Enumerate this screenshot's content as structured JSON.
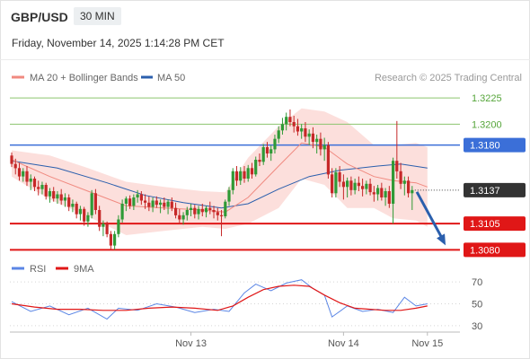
{
  "header": {
    "symbol": "GBP/USD",
    "timeframe": "30 MIN",
    "timestamp": "Friday, November 14, 2025 1:14:28 PM CET"
  },
  "legend": {
    "ma20": {
      "label": "MA 20 + Bollinger Bands",
      "color": "#f08a80"
    },
    "ma50": {
      "label": "MA 50",
      "color": "#2b5fad"
    },
    "credit": "Research © 2025 Trading Central"
  },
  "colors": {
    "up": "#2f9a36",
    "down": "#c62828",
    "band": "#fcd9d6",
    "resistance": "#8cc56e",
    "pivot": "#3b6fd8",
    "support": "#e01717",
    "rsi": "#5b86e5",
    "rsi_ma": "#e01717"
  },
  "chart_data": [
    {
      "type": "candlestick",
      "title": "GBP/USD 30 MIN",
      "ylim": [
        1.307,
        1.325
      ],
      "xlim": [
        0,
        118
      ],
      "x_tick_labels": [
        {
          "label": "Nov 13",
          "x": 47
        },
        {
          "label": "Nov 14",
          "x": 87
        },
        {
          "label": "Nov 15",
          "x": 109
        }
      ],
      "levels": [
        {
          "label": "1.3225",
          "value": 1.3225,
          "kind": "resistance"
        },
        {
          "label": "1.3200",
          "value": 1.32,
          "kind": "resistance"
        },
        {
          "label": "1.3180",
          "value": 1.318,
          "kind": "pivot"
        },
        {
          "label": "1.3137",
          "value": 1.3137,
          "kind": "last"
        },
        {
          "label": "1.3105",
          "value": 1.3105,
          "kind": "support"
        },
        {
          "label": "1.3080",
          "value": 1.308,
          "kind": "support"
        }
      ],
      "projection": {
        "from_value": 1.3137,
        "to_value": 1.308
      },
      "candles": [
        [
          1.317,
          1.3173,
          1.3159,
          1.3162
        ],
        [
          1.3162,
          1.3167,
          1.3152,
          1.3158
        ],
        [
          1.3158,
          1.3163,
          1.3146,
          1.315
        ],
        [
          1.315,
          1.3158,
          1.3145,
          1.3155
        ],
        [
          1.3155,
          1.316,
          1.3141,
          1.3145
        ],
        [
          1.3145,
          1.3152,
          1.3137,
          1.3148
        ],
        [
          1.3148,
          1.315,
          1.3136,
          1.314
        ],
        [
          1.314,
          1.3146,
          1.3132,
          1.3138
        ],
        [
          1.3138,
          1.3145,
          1.3133,
          1.3142
        ],
        [
          1.3142,
          1.3144,
          1.3128,
          1.3131
        ],
        [
          1.3131,
          1.3139,
          1.3125,
          1.3136
        ],
        [
          1.3136,
          1.314,
          1.3126,
          1.3129
        ],
        [
          1.3129,
          1.3136,
          1.3124,
          1.3133
        ],
        [
          1.3133,
          1.3138,
          1.3123,
          1.3127
        ],
        [
          1.3127,
          1.3134,
          1.3121,
          1.313
        ],
        [
          1.313,
          1.3133,
          1.3117,
          1.3121
        ],
        [
          1.3121,
          1.3128,
          1.3116,
          1.3124
        ],
        [
          1.3124,
          1.3126,
          1.311,
          1.3114
        ],
        [
          1.3114,
          1.3122,
          1.3108,
          1.3119
        ],
        [
          1.3119,
          1.3121,
          1.3103,
          1.3107
        ],
        [
          1.3107,
          1.3116,
          1.3102,
          1.3113
        ],
        [
          1.3113,
          1.3137,
          1.311,
          1.3134
        ],
        [
          1.3134,
          1.3138,
          1.3114,
          1.3118
        ],
        [
          1.3118,
          1.3122,
          1.3098,
          1.3102
        ],
        [
          1.3102,
          1.3108,
          1.3093,
          1.3105
        ],
        [
          1.3105,
          1.3107,
          1.3092,
          1.3095
        ],
        [
          1.3095,
          1.3098,
          1.308,
          1.3084
        ],
        [
          1.3084,
          1.3098,
          1.308,
          1.3095
        ],
        [
          1.3095,
          1.3113,
          1.3092,
          1.3109
        ],
        [
          1.3109,
          1.3128,
          1.3106,
          1.3124
        ],
        [
          1.3124,
          1.3131,
          1.3117,
          1.3129
        ],
        [
          1.3129,
          1.3132,
          1.3119,
          1.3122
        ],
        [
          1.3122,
          1.3133,
          1.3118,
          1.313
        ],
        [
          1.313,
          1.3137,
          1.3125,
          1.3133
        ],
        [
          1.3133,
          1.3136,
          1.3123,
          1.3127
        ],
        [
          1.3127,
          1.3133,
          1.3119,
          1.3125
        ],
        [
          1.3125,
          1.3131,
          1.3117,
          1.3121
        ],
        [
          1.3121,
          1.313,
          1.3116,
          1.3127
        ],
        [
          1.3127,
          1.3131,
          1.312,
          1.3123
        ],
        [
          1.3123,
          1.3128,
          1.3115,
          1.3125
        ],
        [
          1.3125,
          1.313,
          1.3118,
          1.3121
        ],
        [
          1.3121,
          1.3128,
          1.3114,
          1.3126
        ],
        [
          1.3126,
          1.313,
          1.3117,
          1.312
        ],
        [
          1.312,
          1.3125,
          1.311,
          1.3113
        ],
        [
          1.3113,
          1.3119,
          1.3105,
          1.3109
        ],
        [
          1.3109,
          1.3116,
          1.3104,
          1.3113
        ],
        [
          1.3113,
          1.3121,
          1.3108,
          1.3118
        ],
        [
          1.3118,
          1.3124,
          1.3112,
          1.312
        ],
        [
          1.312,
          1.3123,
          1.311,
          1.3114
        ],
        [
          1.3114,
          1.3122,
          1.3109,
          1.3119
        ],
        [
          1.3119,
          1.3124,
          1.3112,
          1.3116
        ],
        [
          1.3116,
          1.3122,
          1.3111,
          1.312
        ],
        [
          1.312,
          1.3126,
          1.3114,
          1.3118
        ],
        [
          1.3118,
          1.3122,
          1.311,
          1.3116
        ],
        [
          1.3116,
          1.312,
          1.3108,
          1.3113
        ],
        [
          1.3113,
          1.3118,
          1.3093,
          1.3112
        ],
        [
          1.3112,
          1.3128,
          1.311,
          1.3126
        ],
        [
          1.3126,
          1.314,
          1.3122,
          1.3137
        ],
        [
          1.3137,
          1.3158,
          1.3133,
          1.3155
        ],
        [
          1.3155,
          1.316,
          1.3141,
          1.3146
        ],
        [
          1.3146,
          1.3159,
          1.3142,
          1.3155
        ],
        [
          1.3155,
          1.316,
          1.3144,
          1.3148
        ],
        [
          1.3148,
          1.3161,
          1.3145,
          1.3158
        ],
        [
          1.3158,
          1.3163,
          1.3148,
          1.3152
        ],
        [
          1.3152,
          1.3169,
          1.315,
          1.3166
        ],
        [
          1.3166,
          1.3172,
          1.316,
          1.3164
        ],
        [
          1.3164,
          1.3181,
          1.3161,
          1.3178
        ],
        [
          1.3178,
          1.3183,
          1.3168,
          1.3172
        ],
        [
          1.3172,
          1.318,
          1.3165,
          1.3176
        ],
        [
          1.3176,
          1.319,
          1.3172,
          1.3186
        ],
        [
          1.3186,
          1.3198,
          1.3182,
          1.3194
        ],
        [
          1.3194,
          1.3206,
          1.319,
          1.32
        ],
        [
          1.32,
          1.3211,
          1.3194,
          1.3207
        ],
        [
          1.3207,
          1.3214,
          1.3198,
          1.3202
        ],
        [
          1.3202,
          1.3208,
          1.3192,
          1.3198
        ],
        [
          1.3198,
          1.3205,
          1.3189,
          1.3193
        ],
        [
          1.3193,
          1.32,
          1.3186,
          1.3196
        ],
        [
          1.3196,
          1.3202,
          1.3183,
          1.3188
        ],
        [
          1.3188,
          1.3195,
          1.318,
          1.3191
        ],
        [
          1.3191,
          1.3197,
          1.3177,
          1.3183
        ],
        [
          1.3183,
          1.319,
          1.3172,
          1.3186
        ],
        [
          1.3186,
          1.3192,
          1.317,
          1.3176
        ],
        [
          1.3176,
          1.3187,
          1.3165,
          1.318
        ],
        [
          1.318,
          1.3183,
          1.3148,
          1.3152
        ],
        [
          1.3152,
          1.3158,
          1.313,
          1.3134
        ],
        [
          1.3134,
          1.3158,
          1.313,
          1.3154
        ],
        [
          1.3154,
          1.316,
          1.314,
          1.3145
        ],
        [
          1.3145,
          1.3152,
          1.3128,
          1.314
        ],
        [
          1.314,
          1.3149,
          1.313,
          1.3146
        ],
        [
          1.3146,
          1.315,
          1.3132,
          1.3137
        ],
        [
          1.3137,
          1.3148,
          1.3133,
          1.3144
        ],
        [
          1.3144,
          1.315,
          1.3136,
          1.3141
        ],
        [
          1.3141,
          1.3148,
          1.3131,
          1.3138
        ],
        [
          1.3138,
          1.3146,
          1.3133,
          1.3143
        ],
        [
          1.3143,
          1.3148,
          1.3132,
          1.3135
        ],
        [
          1.3135,
          1.3141,
          1.3126,
          1.3133
        ],
        [
          1.3133,
          1.3142,
          1.3127,
          1.3139
        ],
        [
          1.3139,
          1.3144,
          1.3127,
          1.313
        ],
        [
          1.313,
          1.3139,
          1.3122,
          1.3136
        ],
        [
          1.3136,
          1.3141,
          1.312,
          1.3124
        ],
        [
          1.3124,
          1.3168,
          1.3105,
          1.3165
        ],
        [
          1.3165,
          1.3203,
          1.3148,
          1.3155
        ],
        [
          1.3155,
          1.3163,
          1.3138,
          1.3143
        ],
        [
          1.3143,
          1.315,
          1.3132,
          1.3146
        ],
        [
          1.3146,
          1.315,
          1.313,
          1.3134
        ],
        [
          1.3134,
          1.3141,
          1.3118,
          1.3137
        ]
      ],
      "ma20": [
        [
          0,
          1.3166
        ],
        [
          10,
          1.315
        ],
        [
          20,
          1.3136
        ],
        [
          30,
          1.3122
        ],
        [
          40,
          1.312
        ],
        [
          50,
          1.3118
        ],
        [
          56,
          1.3116
        ],
        [
          62,
          1.313
        ],
        [
          70,
          1.316
        ],
        [
          76,
          1.3182
        ],
        [
          82,
          1.3178
        ],
        [
          88,
          1.3162
        ],
        [
          95,
          1.315
        ],
        [
          100,
          1.3146
        ],
        [
          106,
          1.3144
        ],
        [
          109,
          1.314
        ]
      ],
      "ma50": [
        [
          0,
          1.3165
        ],
        [
          12,
          1.3158
        ],
        [
          25,
          1.3144
        ],
        [
          35,
          1.3132
        ],
        [
          45,
          1.3125
        ],
        [
          55,
          1.312
        ],
        [
          62,
          1.3124
        ],
        [
          70,
          1.3138
        ],
        [
          78,
          1.315
        ],
        [
          86,
          1.3156
        ],
        [
          96,
          1.316
        ],
        [
          102,
          1.3162
        ],
        [
          109,
          1.3158
        ]
      ],
      "bollinger_upper": [
        [
          0,
          1.3175
        ],
        [
          10,
          1.317
        ],
        [
          20,
          1.3158
        ],
        [
          30,
          1.3145
        ],
        [
          40,
          1.314
        ],
        [
          50,
          1.3136
        ],
        [
          56,
          1.3135
        ],
        [
          62,
          1.3168
        ],
        [
          70,
          1.3198
        ],
        [
          76,
          1.3215
        ],
        [
          82,
          1.3212
        ],
        [
          88,
          1.3202
        ],
        [
          95,
          1.318
        ],
        [
          100,
          1.318
        ],
        [
          106,
          1.3182
        ],
        [
          109,
          1.3178
        ]
      ],
      "bollinger_lower": [
        [
          0,
          1.315
        ],
        [
          10,
          1.3128
        ],
        [
          20,
          1.3112
        ],
        [
          30,
          1.3094
        ],
        [
          40,
          1.3098
        ],
        [
          50,
          1.3102
        ],
        [
          56,
          1.31
        ],
        [
          62,
          1.3105
        ],
        [
          70,
          1.312
        ],
        [
          76,
          1.3148
        ],
        [
          82,
          1.3142
        ],
        [
          88,
          1.312
        ],
        [
          95,
          1.312
        ],
        [
          100,
          1.311
        ],
        [
          106,
          1.3108
        ],
        [
          109,
          1.3102
        ]
      ]
    },
    {
      "type": "line",
      "title": "RSI",
      "ylim": [
        20,
        80
      ],
      "y_tick_labels": [
        "70",
        "50",
        "30"
      ],
      "y_ticks": [
        70,
        50,
        30
      ],
      "series": [
        {
          "name": "RSI",
          "points": [
            [
              0,
              52
            ],
            [
              5,
              43
            ],
            [
              10,
              48
            ],
            [
              15,
              40
            ],
            [
              20,
              46
            ],
            [
              25,
              36
            ],
            [
              28,
              46
            ],
            [
              33,
              44
            ],
            [
              38,
              50
            ],
            [
              43,
              47
            ],
            [
              48,
              42
            ],
            [
              53,
              45
            ],
            [
              57,
              43
            ],
            [
              61,
              60
            ],
            [
              64,
              68
            ],
            [
              68,
              62
            ],
            [
              72,
              69
            ],
            [
              76,
              72
            ],
            [
              79,
              64
            ],
            [
              82,
              58
            ],
            [
              84,
              38
            ],
            [
              88,
              48
            ],
            [
              92,
              43
            ],
            [
              96,
              45
            ],
            [
              100,
              42
            ],
            [
              103,
              56
            ],
            [
              106,
              48
            ],
            [
              109,
              50
            ]
          ]
        },
        {
          "name": "9MA",
          "points": [
            [
              0,
              50
            ],
            [
              6,
              47
            ],
            [
              12,
              45
            ],
            [
              18,
              45
            ],
            [
              24,
              44
            ],
            [
              30,
              44
            ],
            [
              36,
              46
            ],
            [
              42,
              47
            ],
            [
              48,
              46
            ],
            [
              54,
              44
            ],
            [
              58,
              48
            ],
            [
              62,
              56
            ],
            [
              66,
              63
            ],
            [
              70,
              66
            ],
            [
              74,
              67
            ],
            [
              78,
              66
            ],
            [
              82,
              58
            ],
            [
              86,
              51
            ],
            [
              90,
              46
            ],
            [
              94,
              45
            ],
            [
              98,
              44
            ],
            [
              102,
              44
            ],
            [
              106,
              46
            ],
            [
              109,
              48
            ]
          ]
        }
      ]
    }
  ]
}
